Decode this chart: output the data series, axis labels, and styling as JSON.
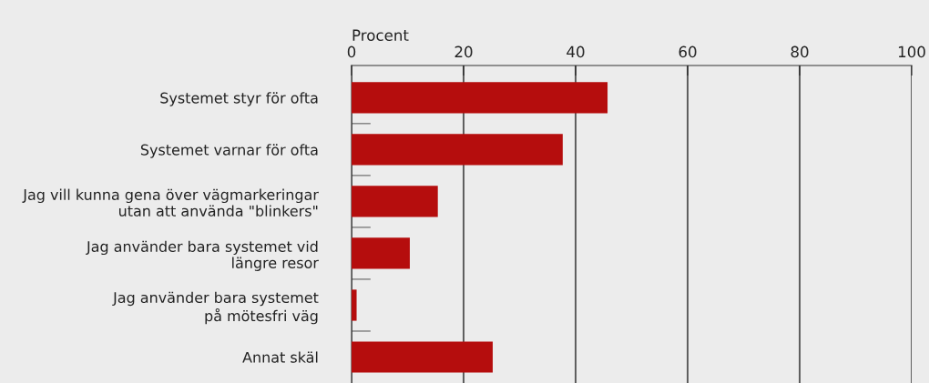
{
  "chart_data": {
    "type": "bar",
    "orientation": "horizontal",
    "xlabel": "Procent",
    "categories": [
      "Systemet styr för ofta",
      "Systemet varnar för ofta",
      "Jag vill kunna gena över vägmarkeringar\nutan att använda \"blinkers\"",
      "Jag använder bara systemet vid\nlängre resor",
      "Jag använder bara systemet\npå mötesfri väg",
      "Annat skäl"
    ],
    "values": [
      45.7,
      37.7,
      15.4,
      10.4,
      0.9,
      25.2
    ],
    "color": "#b50d0d",
    "xlim": [
      0,
      100
    ],
    "xticks": [
      0,
      20,
      40,
      60,
      80,
      100
    ],
    "grid": "x"
  }
}
